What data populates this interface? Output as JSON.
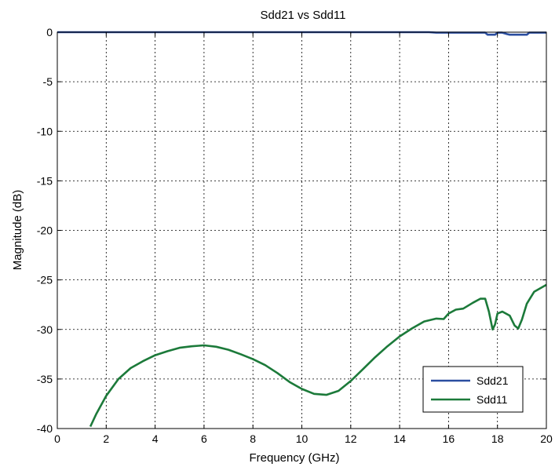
{
  "chart_data": {
    "type": "line",
    "title": "Sdd21 vs Sdd11",
    "xlabel": "Frequency (GHz)",
    "ylabel": "Magnitude (dB)",
    "xlim": [
      0,
      20
    ],
    "ylim": [
      -40,
      0
    ],
    "xticks": [
      0,
      2,
      4,
      6,
      8,
      10,
      12,
      14,
      16,
      18,
      20
    ],
    "yticks": [
      0,
      -5,
      -10,
      -15,
      -20,
      -25,
      -30,
      -35,
      -40
    ],
    "grid": true,
    "legend_position": "bottom-right",
    "series": [
      {
        "name": "Sdd21",
        "color": "#2b4ea0",
        "x": [
          0,
          15.2,
          15.5,
          17.5,
          17.6,
          17.9,
          18.0,
          18.2,
          18.4,
          18.5,
          19.2,
          19.3,
          20
        ],
        "y": [
          0,
          0,
          -0.05,
          -0.05,
          -0.25,
          -0.25,
          -0.05,
          -0.05,
          -0.2,
          -0.25,
          -0.25,
          -0.05,
          -0.05
        ]
      },
      {
        "name": "Sdd11",
        "color": "#1c7a3a",
        "x": [
          1.35,
          1.6,
          2.0,
          2.5,
          3.0,
          3.5,
          4.0,
          4.5,
          5.0,
          5.5,
          6.0,
          6.5,
          7.0,
          7.5,
          8.0,
          8.5,
          9.0,
          9.5,
          10.0,
          10.5,
          11.0,
          11.5,
          12.0,
          12.5,
          13.0,
          13.5,
          14.0,
          14.5,
          15.0,
          15.5,
          15.8,
          16.0,
          16.3,
          16.6,
          17.0,
          17.3,
          17.5,
          17.65,
          17.8,
          17.9,
          18.0,
          18.2,
          18.5,
          18.7,
          18.85,
          19.0,
          19.2,
          19.5,
          20.0
        ],
        "y": [
          -39.8,
          -38.5,
          -36.7,
          -35.0,
          -33.9,
          -33.2,
          -32.6,
          -32.2,
          -31.85,
          -31.7,
          -31.6,
          -31.75,
          -32.05,
          -32.5,
          -33.0,
          -33.6,
          -34.4,
          -35.3,
          -36.0,
          -36.5,
          -36.6,
          -36.2,
          -35.2,
          -34.0,
          -32.8,
          -31.7,
          -30.7,
          -29.9,
          -29.2,
          -28.9,
          -28.95,
          -28.4,
          -28.0,
          -27.9,
          -27.3,
          -26.9,
          -26.9,
          -28.2,
          -30.0,
          -29.5,
          -28.4,
          -28.2,
          -28.6,
          -29.6,
          -29.9,
          -29.0,
          -27.4,
          -26.2,
          -25.5
        ]
      }
    ]
  }
}
